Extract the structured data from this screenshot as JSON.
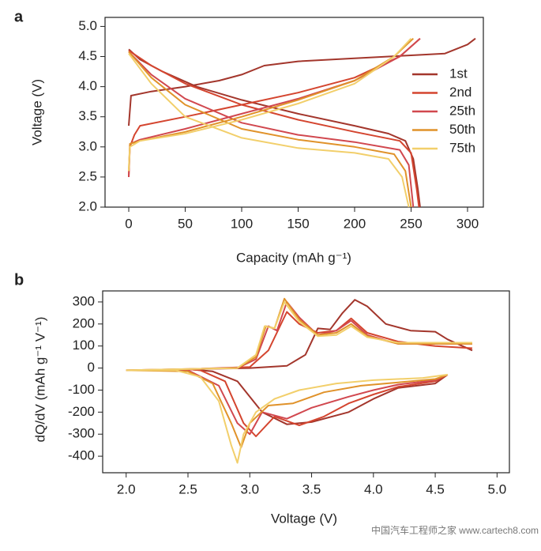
{
  "chart_data": [
    {
      "type": "line",
      "panel_label": "a",
      "xlabel": "Capacity (mAh g⁻¹)",
      "ylabel": "Voltage (V)",
      "xlim": [
        -21,
        314
      ],
      "ylim": [
        2.0,
        5.15
      ],
      "xticks": [
        0,
        50,
        100,
        150,
        200,
        250,
        300
      ],
      "yticks": [
        {
          "value": 2,
          "label": "2.0"
        },
        {
          "value": 2.5,
          "label": "2.5"
        },
        {
          "value": 3,
          "label": "3.0"
        },
        {
          "value": 3.5,
          "label": "3.5"
        },
        {
          "value": 4,
          "label": "4.0"
        },
        {
          "value": 4.5,
          "label": "4.5"
        },
        {
          "value": 5,
          "label": "5.0"
        }
      ],
      "legend": "right",
      "series": [
        {
          "name": "1st",
          "color": "#a3362c",
          "x": [
            0,
            2,
            20,
            50,
            80,
            100,
            120,
            150,
            200,
            250,
            280,
            300,
            307,
            null,
            0,
            10,
            30,
            60,
            100,
            150,
            200,
            230,
            245,
            252,
            256,
            258
          ],
          "values": [
            3.35,
            3.85,
            3.92,
            4.0,
            4.1,
            4.2,
            4.35,
            4.42,
            4.47,
            4.52,
            4.55,
            4.7,
            4.8,
            null,
            4.62,
            4.45,
            4.25,
            4.0,
            3.78,
            3.55,
            3.35,
            3.22,
            3.1,
            2.8,
            2.3,
            2.0
          ]
        },
        {
          "name": "2nd",
          "color": "#d4452f",
          "x": [
            0,
            1,
            5,
            10,
            50,
            100,
            150,
            200,
            240,
            258,
            null,
            0,
            20,
            50,
            100,
            150,
            200,
            240,
            250,
            255,
            257
          ],
          "values": [
            2.5,
            3.0,
            3.2,
            3.35,
            3.5,
            3.7,
            3.9,
            4.15,
            4.5,
            4.8,
            null,
            4.6,
            4.35,
            4.05,
            3.7,
            3.45,
            3.25,
            3.1,
            2.9,
            2.3,
            2.0
          ]
        },
        {
          "name": "25th",
          "color": "#d1484f",
          "x": [
            0,
            1,
            10,
            50,
            100,
            150,
            200,
            240,
            258,
            null,
            0,
            20,
            50,
            100,
            150,
            200,
            240,
            248,
            252
          ],
          "values": [
            2.5,
            3.05,
            3.12,
            3.3,
            3.55,
            3.8,
            4.1,
            4.5,
            4.8,
            null,
            4.58,
            4.2,
            3.8,
            3.4,
            3.2,
            3.08,
            2.95,
            2.7,
            2.0
          ]
        },
        {
          "name": "50th",
          "color": "#e0922a",
          "x": [
            0,
            1,
            10,
            50,
            100,
            150,
            200,
            235,
            252,
            null,
            0,
            20,
            50,
            100,
            150,
            200,
            235,
            245,
            250
          ],
          "values": [
            2.6,
            3.05,
            3.1,
            3.25,
            3.5,
            3.78,
            4.1,
            4.5,
            4.8,
            null,
            4.58,
            4.15,
            3.7,
            3.3,
            3.12,
            3.0,
            2.88,
            2.6,
            2.0
          ]
        },
        {
          "name": "75th",
          "color": "#f2cf6b",
          "x": [
            0,
            1,
            10,
            50,
            100,
            150,
            200,
            235,
            250,
            null,
            0,
            20,
            50,
            100,
            150,
            200,
            230,
            242,
            248
          ],
          "values": [
            2.6,
            3.0,
            3.1,
            3.22,
            3.45,
            3.72,
            4.05,
            4.5,
            4.8,
            null,
            4.55,
            4.05,
            3.5,
            3.15,
            2.98,
            2.9,
            2.8,
            2.5,
            2.0
          ]
        }
      ]
    },
    {
      "type": "line",
      "panel_label": "b",
      "xlabel": "Voltage (V)",
      "ylabel": "dQ/dV (mAh g⁻¹ V⁻¹)",
      "xlim": [
        1.81,
        5.1
      ],
      "ylim": [
        -475,
        350
      ],
      "xticks": [
        {
          "value": 2,
          "label": "2.0"
        },
        {
          "value": 2.5,
          "label": "2.5"
        },
        {
          "value": 3,
          "label": "3.0"
        },
        {
          "value": 3.5,
          "label": "3.5"
        },
        {
          "value": 4,
          "label": "4.0"
        },
        {
          "value": 4.5,
          "label": "4.5"
        },
        {
          "value": 5,
          "label": "5.0"
        }
      ],
      "yticks": [
        -400,
        -300,
        -200,
        -100,
        0,
        100,
        200,
        300
      ],
      "series": [
        {
          "color": "#a3362c",
          "x": [
            2.5,
            3.0,
            3.3,
            3.45,
            3.55,
            3.65,
            3.75,
            3.85,
            3.95,
            4.1,
            4.3,
            4.5,
            4.6,
            4.8,
            null,
            4.6,
            4.5,
            4.2,
            4.0,
            3.8,
            3.5,
            3.3,
            3.1,
            2.9,
            2.7,
            2.5
          ],
          "values": [
            -5,
            0,
            10,
            60,
            180,
            175,
            250,
            310,
            280,
            200,
            170,
            165,
            130,
            80,
            null,
            -30,
            -70,
            -90,
            -140,
            -200,
            -245,
            -255,
            -200,
            -60,
            -15,
            -5
          ]
        },
        {
          "color": "#d4452f",
          "x": [
            2.5,
            3.0,
            3.15,
            3.3,
            3.4,
            3.55,
            3.7,
            3.82,
            3.95,
            4.2,
            4.5,
            4.8,
            null,
            4.6,
            4.5,
            4.2,
            4.0,
            3.8,
            3.6,
            3.4,
            3.2,
            3.05,
            2.95,
            2.8,
            2.6,
            2.5
          ],
          "values": [
            -5,
            5,
            80,
            255,
            200,
            160,
            170,
            225,
            160,
            120,
            100,
            90,
            null,
            -30,
            -60,
            -85,
            -120,
            -160,
            -220,
            -260,
            -220,
            -310,
            -250,
            -60,
            -10,
            -5
          ]
        },
        {
          "color": "#d1484f",
          "x": [
            2.0,
            2.9,
            3.05,
            3.15,
            3.22,
            3.3,
            3.4,
            3.55,
            3.7,
            3.82,
            3.95,
            4.2,
            4.8,
            null,
            4.6,
            4.5,
            4.2,
            4.0,
            3.8,
            3.5,
            3.3,
            3.1,
            3.0,
            2.9,
            2.75,
            2.5,
            2.0
          ],
          "values": [
            -10,
            0,
            40,
            190,
            170,
            300,
            230,
            150,
            170,
            215,
            150,
            110,
            110,
            null,
            -30,
            -55,
            -75,
            -100,
            -130,
            -180,
            -230,
            -200,
            -300,
            -250,
            -80,
            -10,
            -10
          ]
        },
        {
          "color": "#e0922a",
          "x": [
            2.0,
            2.9,
            3.05,
            3.13,
            3.2,
            3.28,
            3.4,
            3.55,
            3.7,
            3.82,
            3.95,
            4.2,
            4.8,
            null,
            4.6,
            4.5,
            4.2,
            3.9,
            3.6,
            3.35,
            3.15,
            3.0,
            2.93,
            2.85,
            2.7,
            2.5,
            2.0
          ],
          "values": [
            -10,
            0,
            50,
            190,
            180,
            315,
            220,
            150,
            160,
            200,
            145,
            110,
            110,
            null,
            -30,
            -50,
            -65,
            -80,
            -110,
            -160,
            -170,
            -250,
            -360,
            -250,
            -70,
            -15,
            -10
          ]
        },
        {
          "color": "#f2cf6b",
          "x": [
            2.0,
            2.9,
            3.05,
            3.12,
            3.2,
            3.28,
            3.4,
            3.55,
            3.7,
            3.82,
            3.95,
            4.2,
            4.8,
            null,
            4.6,
            4.4,
            4.0,
            3.7,
            3.4,
            3.2,
            3.05,
            2.95,
            2.9,
            2.85,
            2.75,
            2.6,
            2.4,
            2.0
          ],
          "values": [
            -10,
            0,
            60,
            190,
            180,
            300,
            210,
            145,
            150,
            190,
            140,
            115,
            115,
            null,
            -30,
            -45,
            -55,
            -70,
            -100,
            -140,
            -200,
            -300,
            -430,
            -350,
            -150,
            -40,
            -10,
            -10
          ]
        }
      ]
    }
  ],
  "watermark": "中国汽车工程师之家 www.cartech8.com"
}
